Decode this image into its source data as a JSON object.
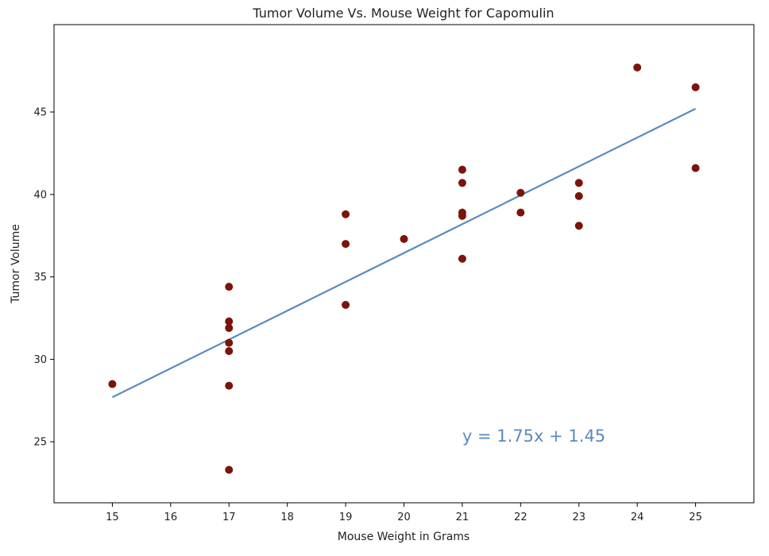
{
  "chart_data": {
    "type": "scatter",
    "title": "Tumor Volume Vs. Mouse Weight for Capomulin",
    "xlabel": "Mouse Weight in Grams",
    "ylabel": "Tumor Volume",
    "xlim": [
      14,
      26
    ],
    "ylim": [
      21.3,
      50.3
    ],
    "xticks": [
      15,
      16,
      17,
      18,
      19,
      20,
      21,
      22,
      23,
      24,
      25
    ],
    "yticks": [
      25,
      30,
      35,
      40,
      45
    ],
    "grid": false,
    "colors": {
      "points": "#7b1409",
      "line": "#5a8ac0",
      "annotation": "#5a8ac0",
      "axes": "#000000",
      "text": "#222222"
    },
    "points": [
      {
        "x": 15,
        "y": 28.5
      },
      {
        "x": 17,
        "y": 34.4
      },
      {
        "x": 17,
        "y": 32.3
      },
      {
        "x": 17,
        "y": 31.9
      },
      {
        "x": 17,
        "y": 31.0
      },
      {
        "x": 17,
        "y": 30.5
      },
      {
        "x": 17,
        "y": 28.4
      },
      {
        "x": 17,
        "y": 23.3
      },
      {
        "x": 19,
        "y": 38.8
      },
      {
        "x": 19,
        "y": 37.0
      },
      {
        "x": 19,
        "y": 33.3
      },
      {
        "x": 20,
        "y": 37.3
      },
      {
        "x": 21,
        "y": 41.5
      },
      {
        "x": 21,
        "y": 40.7
      },
      {
        "x": 21,
        "y": 38.9
      },
      {
        "x": 21,
        "y": 38.7
      },
      {
        "x": 21,
        "y": 36.1
      },
      {
        "x": 22,
        "y": 40.1
      },
      {
        "x": 22,
        "y": 38.9
      },
      {
        "x": 23,
        "y": 40.7
      },
      {
        "x": 23,
        "y": 39.9
      },
      {
        "x": 23,
        "y": 38.1
      },
      {
        "x": 24,
        "y": 47.7
      },
      {
        "x": 25,
        "y": 46.5
      },
      {
        "x": 25,
        "y": 41.6
      }
    ],
    "regression": {
      "slope": 1.75,
      "intercept": 1.45,
      "x_range": [
        15,
        25
      ]
    },
    "annotation": {
      "text": "y = 1.75x + 1.45",
      "x": 21,
      "y": 25
    }
  }
}
